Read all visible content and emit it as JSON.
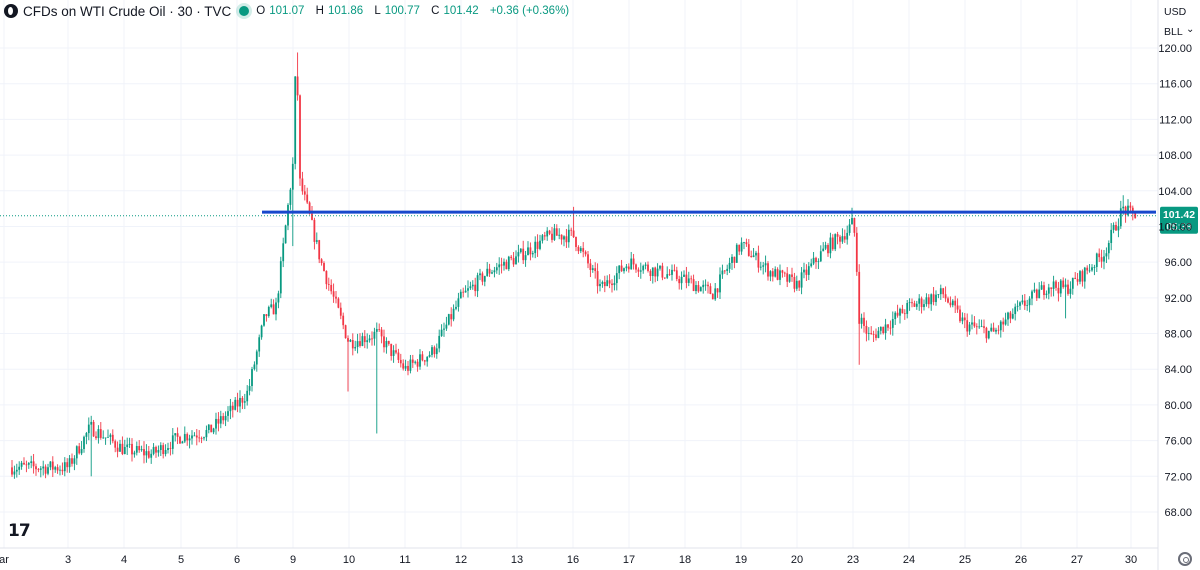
{
  "header": {
    "symbol_title": "CFDs on WTI Crude Oil · 30 · TVC",
    "open_label": "O",
    "open": "101.07",
    "high_label": "H",
    "high": "101.86",
    "low_label": "L",
    "low": "100.77",
    "close_label": "C",
    "close": "101.42",
    "change": "+0.36 (+0.36%)"
  },
  "price_axis": {
    "currency": "USD",
    "unit": "BLL",
    "current_price": "101.42",
    "countdown": "05:38"
  },
  "logo_text": "17",
  "colors": {
    "up": "#089981",
    "down": "#F23645",
    "trendline": "#1848CC",
    "price_tag": "#089981"
  },
  "chart_data": {
    "type": "candlestick",
    "title": "CFDs on WTI Crude Oil · 30 · TVC",
    "ylim": [
      65,
      121
    ],
    "y_ticks": [
      "68.00",
      "72.00",
      "76.00",
      "80.00",
      "84.00",
      "88.00",
      "92.00",
      "96.00",
      "100.00",
      "104.00",
      "108.00",
      "112.00",
      "116.00",
      "120.00"
    ],
    "x_ticks": [
      "ar",
      "3",
      "4",
      "5",
      "6",
      "9",
      "10",
      "11",
      "12",
      "13",
      "16",
      "17",
      "18",
      "19",
      "20",
      "23",
      "24",
      "25",
      "26",
      "27",
      "30"
    ],
    "horizontal_line": 101.6,
    "last_price": 101.42,
    "anchors": [
      {
        "x": "2",
        "price": 73.0
      },
      {
        "x": "3",
        "price": 73.0
      },
      {
        "x": "3.4",
        "price": 77.5
      },
      {
        "x": "4",
        "price": 75.0
      },
      {
        "x": "4.5",
        "price": 74.5
      },
      {
        "x": "5",
        "price": 76.5
      },
      {
        "x": "5.5",
        "price": 77.0
      },
      {
        "x": "6",
        "price": 80.0
      },
      {
        "x": "6.2",
        "price": 81.5
      },
      {
        "x": "6.5",
        "price": 90.0
      },
      {
        "x": "6.7",
        "price": 91.0
      },
      {
        "x": "9",
        "price": 107.0
      },
      {
        "x": "9.02",
        "price": 115.0
      },
      {
        "x": "9.07",
        "price": 118.0
      },
      {
        "x": "9.12",
        "price": 105.0
      },
      {
        "x": "9.3",
        "price": 101.0
      },
      {
        "x": "9.5",
        "price": 96.0
      },
      {
        "x": "10",
        "price": 87.0
      },
      {
        "x": "10.5",
        "price": 88.0
      },
      {
        "x": "11",
        "price": 84.0
      },
      {
        "x": "11.5",
        "price": 86.0
      },
      {
        "x": "12",
        "price": 92.0
      },
      {
        "x": "12.5",
        "price": 95.0
      },
      {
        "x": "13",
        "price": 96.5
      },
      {
        "x": "13.6",
        "price": 99.0
      },
      {
        "x": "16",
        "price": 99.0
      },
      {
        "x": "16.5",
        "price": 93.0
      },
      {
        "x": "17",
        "price": 96.0
      },
      {
        "x": "18",
        "price": 94.0
      },
      {
        "x": "18.5",
        "price": 92.5
      },
      {
        "x": "19",
        "price": 98.0
      },
      {
        "x": "19.5",
        "price": 95.0
      },
      {
        "x": "20",
        "price": 93.5
      },
      {
        "x": "20.5",
        "price": 97.5
      },
      {
        "x": "20.9",
        "price": 99.5
      },
      {
        "x": "23",
        "price": 100.5
      },
      {
        "x": "23.05",
        "price": 98.0
      },
      {
        "x": "23.1",
        "price": 90.0
      },
      {
        "x": "23.3",
        "price": 87.5
      },
      {
        "x": "24",
        "price": 91.0
      },
      {
        "x": "24.6",
        "price": 92.5
      },
      {
        "x": "25",
        "price": 89.0
      },
      {
        "x": "25.5",
        "price": 88.0
      },
      {
        "x": "26",
        "price": 91.0
      },
      {
        "x": "26.5",
        "price": 93.5
      },
      {
        "x": "26.8",
        "price": 93.0
      },
      {
        "x": "27",
        "price": 94.0
      },
      {
        "x": "27.5",
        "price": 97.0
      },
      {
        "x": "27.85",
        "price": 102.0
      },
      {
        "x": "30",
        "price": 101.3
      },
      {
        "x": "30.1",
        "price": 101.4
      }
    ],
    "spikes": [
      {
        "x": "9",
        "low": 97.8
      },
      {
        "x": "9.07",
        "high": 119.5
      },
      {
        "x": "10",
        "low": 81.5
      },
      {
        "x": "10.5",
        "low": 76.8
      },
      {
        "x": "16",
        "high": 102.2
      },
      {
        "x": "23",
        "high": 102.1
      },
      {
        "x": "23.1",
        "low": 84.5
      },
      {
        "x": "26.8",
        "low": 89.7
      },
      {
        "x": "27.85",
        "high": 103.5
      },
      {
        "x": "3.4",
        "low": 72.0
      }
    ]
  }
}
